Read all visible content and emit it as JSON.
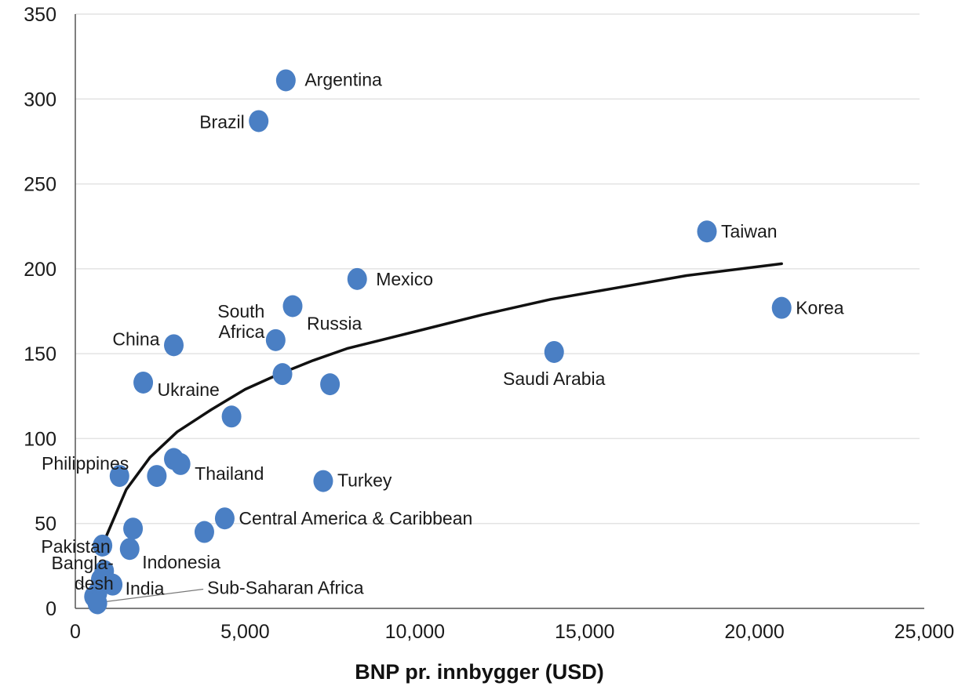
{
  "chart_data": {
    "type": "scatter",
    "title": "",
    "xlabel": "BNP pr. innbygger (USD)",
    "ylabel": "",
    "xlim": [
      0,
      25000
    ],
    "ylim": [
      0,
      350
    ],
    "x_ticks": [
      0,
      5000,
      10000,
      15000,
      20000,
      25000
    ],
    "x_tick_labels": [
      "0",
      "5,000",
      "10,000",
      "15,000",
      "20,000",
      "25,000"
    ],
    "y_ticks": [
      0,
      50,
      100,
      150,
      200,
      250,
      300,
      350
    ],
    "y_tick_labels": [
      "0",
      "50",
      "100",
      "150",
      "200",
      "250",
      "300",
      "350"
    ],
    "grid": "horizontal",
    "marker_color": "#4a7fc4",
    "trend_color": "#111111",
    "points": [
      {
        "label": "Argentina",
        "x": 6200,
        "y": 311
      },
      {
        "label": "Brazil",
        "x": 5400,
        "y": 287
      },
      {
        "label": "Taiwan",
        "x": 18600,
        "y": 222
      },
      {
        "label": "Mexico",
        "x": 8300,
        "y": 194
      },
      {
        "label": "Russia",
        "x": 6400,
        "y": 178
      },
      {
        "label": "Korea",
        "x": 20800,
        "y": 177
      },
      {
        "label": "South Africa",
        "x": 5900,
        "y": 158
      },
      {
        "label": "China",
        "x": 2900,
        "y": 155
      },
      {
        "label": "Saudi Arabia",
        "x": 14100,
        "y": 151
      },
      {
        "label": "",
        "x": 6100,
        "y": 138
      },
      {
        "label": "",
        "x": 7500,
        "y": 132
      },
      {
        "label": "Ukraine",
        "x": 2000,
        "y": 133
      },
      {
        "label": "",
        "x": 4600,
        "y": 113
      },
      {
        "label": "",
        "x": 2900,
        "y": 88
      },
      {
        "label": "Thailand",
        "x": 3100,
        "y": 85
      },
      {
        "label": "",
        "x": 2400,
        "y": 78
      },
      {
        "label": "Philippines",
        "x": 1300,
        "y": 78
      },
      {
        "label": "Turkey",
        "x": 7300,
        "y": 75
      },
      {
        "label": "Central America & Caribbean",
        "x": 4400,
        "y": 53
      },
      {
        "label": "",
        "x": 1700,
        "y": 47
      },
      {
        "label": "",
        "x": 3800,
        "y": 45
      },
      {
        "label": "Pakistan",
        "x": 800,
        "y": 37
      },
      {
        "label": "Indonesia",
        "x": 1600,
        "y": 35
      },
      {
        "label": "",
        "x": 850,
        "y": 22
      },
      {
        "label": "",
        "x": 750,
        "y": 17
      },
      {
        "label": "India",
        "x": 1100,
        "y": 14
      },
      {
        "label": "",
        "x": 650,
        "y": 9
      },
      {
        "label": "Bangla-desh",
        "x": 550,
        "y": 7
      },
      {
        "label": "Sub-Saharan Africa",
        "x": 650,
        "y": 3
      }
    ],
    "trend_line": {
      "x": [
        900,
        1500,
        2200,
        3000,
        4000,
        5000,
        6000,
        7000,
        8000,
        9000,
        10000,
        12000,
        14000,
        16000,
        18000,
        20800
      ],
      "y": [
        42,
        70,
        89,
        104,
        117,
        129,
        138,
        146,
        153,
        158,
        163,
        173,
        182,
        189,
        196,
        203
      ]
    }
  }
}
